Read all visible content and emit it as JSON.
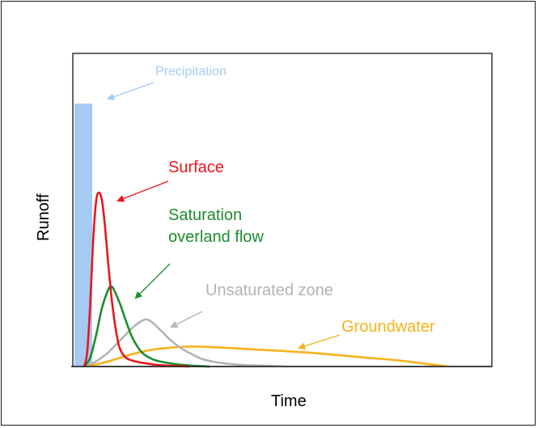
{
  "chart_data": {
    "type": "line",
    "xlabel": "Time",
    "ylabel": "Runoff",
    "precipitation": {
      "label": "Precipitation",
      "color": "#a6cbf2"
    },
    "series": [
      {
        "name": "Surface",
        "color": "#e8171d",
        "label_lines": [
          "Surface"
        ],
        "points": [
          [
            0,
            0
          ],
          [
            1,
            0.08
          ],
          [
            2,
            0.35
          ],
          [
            3,
            0.72
          ],
          [
            4,
            0.95
          ],
          [
            5,
            1.0
          ],
          [
            6,
            0.95
          ],
          [
            7,
            0.8
          ],
          [
            8,
            0.6
          ],
          [
            9,
            0.42
          ],
          [
            10,
            0.28
          ],
          [
            11,
            0.17
          ],
          [
            12,
            0.1
          ],
          [
            14,
            0.05
          ],
          [
            17,
            0.03
          ],
          [
            20,
            0.02
          ],
          [
            24,
            0.01
          ],
          [
            28,
            0.005
          ],
          [
            35,
            0
          ]
        ]
      },
      {
        "name": "Saturation overland flow",
        "color": "#1e8c2e",
        "label_lines": [
          "Saturation",
          "overland flow"
        ],
        "points": [
          [
            0,
            0
          ],
          [
            2,
            0.05
          ],
          [
            4,
            0.18
          ],
          [
            6,
            0.34
          ],
          [
            8,
            0.44
          ],
          [
            9,
            0.46
          ],
          [
            10,
            0.44
          ],
          [
            12,
            0.36
          ],
          [
            14,
            0.26
          ],
          [
            16,
            0.17
          ],
          [
            18,
            0.11
          ],
          [
            20,
            0.07
          ],
          [
            24,
            0.035
          ],
          [
            30,
            0.015
          ],
          [
            36,
            0.005
          ],
          [
            42,
            0
          ]
        ]
      },
      {
        "name": "Unsaturated zone",
        "color": "#b3b3b3",
        "label_lines": [
          "Unsaturated zone"
        ],
        "points": [
          [
            0,
            0
          ],
          [
            4,
            0.03
          ],
          [
            8,
            0.08
          ],
          [
            12,
            0.15
          ],
          [
            16,
            0.22
          ],
          [
            19,
            0.26
          ],
          [
            21,
            0.27
          ],
          [
            23,
            0.25
          ],
          [
            26,
            0.2
          ],
          [
            29,
            0.15
          ],
          [
            32,
            0.11
          ],
          [
            36,
            0.07
          ],
          [
            40,
            0.04
          ],
          [
            46,
            0.02
          ],
          [
            52,
            0.01
          ],
          [
            60,
            0.005
          ],
          [
            68,
            0
          ]
        ]
      },
      {
        "name": "Groundwater",
        "color": "#f5b319",
        "label_lines": [
          "Groundwater"
        ],
        "points": [
          [
            0,
            0
          ],
          [
            6,
            0.02
          ],
          [
            12,
            0.05
          ],
          [
            18,
            0.08
          ],
          [
            24,
            0.1
          ],
          [
            30,
            0.11
          ],
          [
            36,
            0.115
          ],
          [
            45,
            0.11
          ],
          [
            55,
            0.1
          ],
          [
            65,
            0.09
          ],
          [
            75,
            0.08
          ],
          [
            85,
            0.065
          ],
          [
            95,
            0.05
          ],
          [
            105,
            0.035
          ],
          [
            112,
            0.02
          ],
          [
            118,
            0.008
          ],
          [
            122,
            0
          ]
        ]
      }
    ]
  }
}
